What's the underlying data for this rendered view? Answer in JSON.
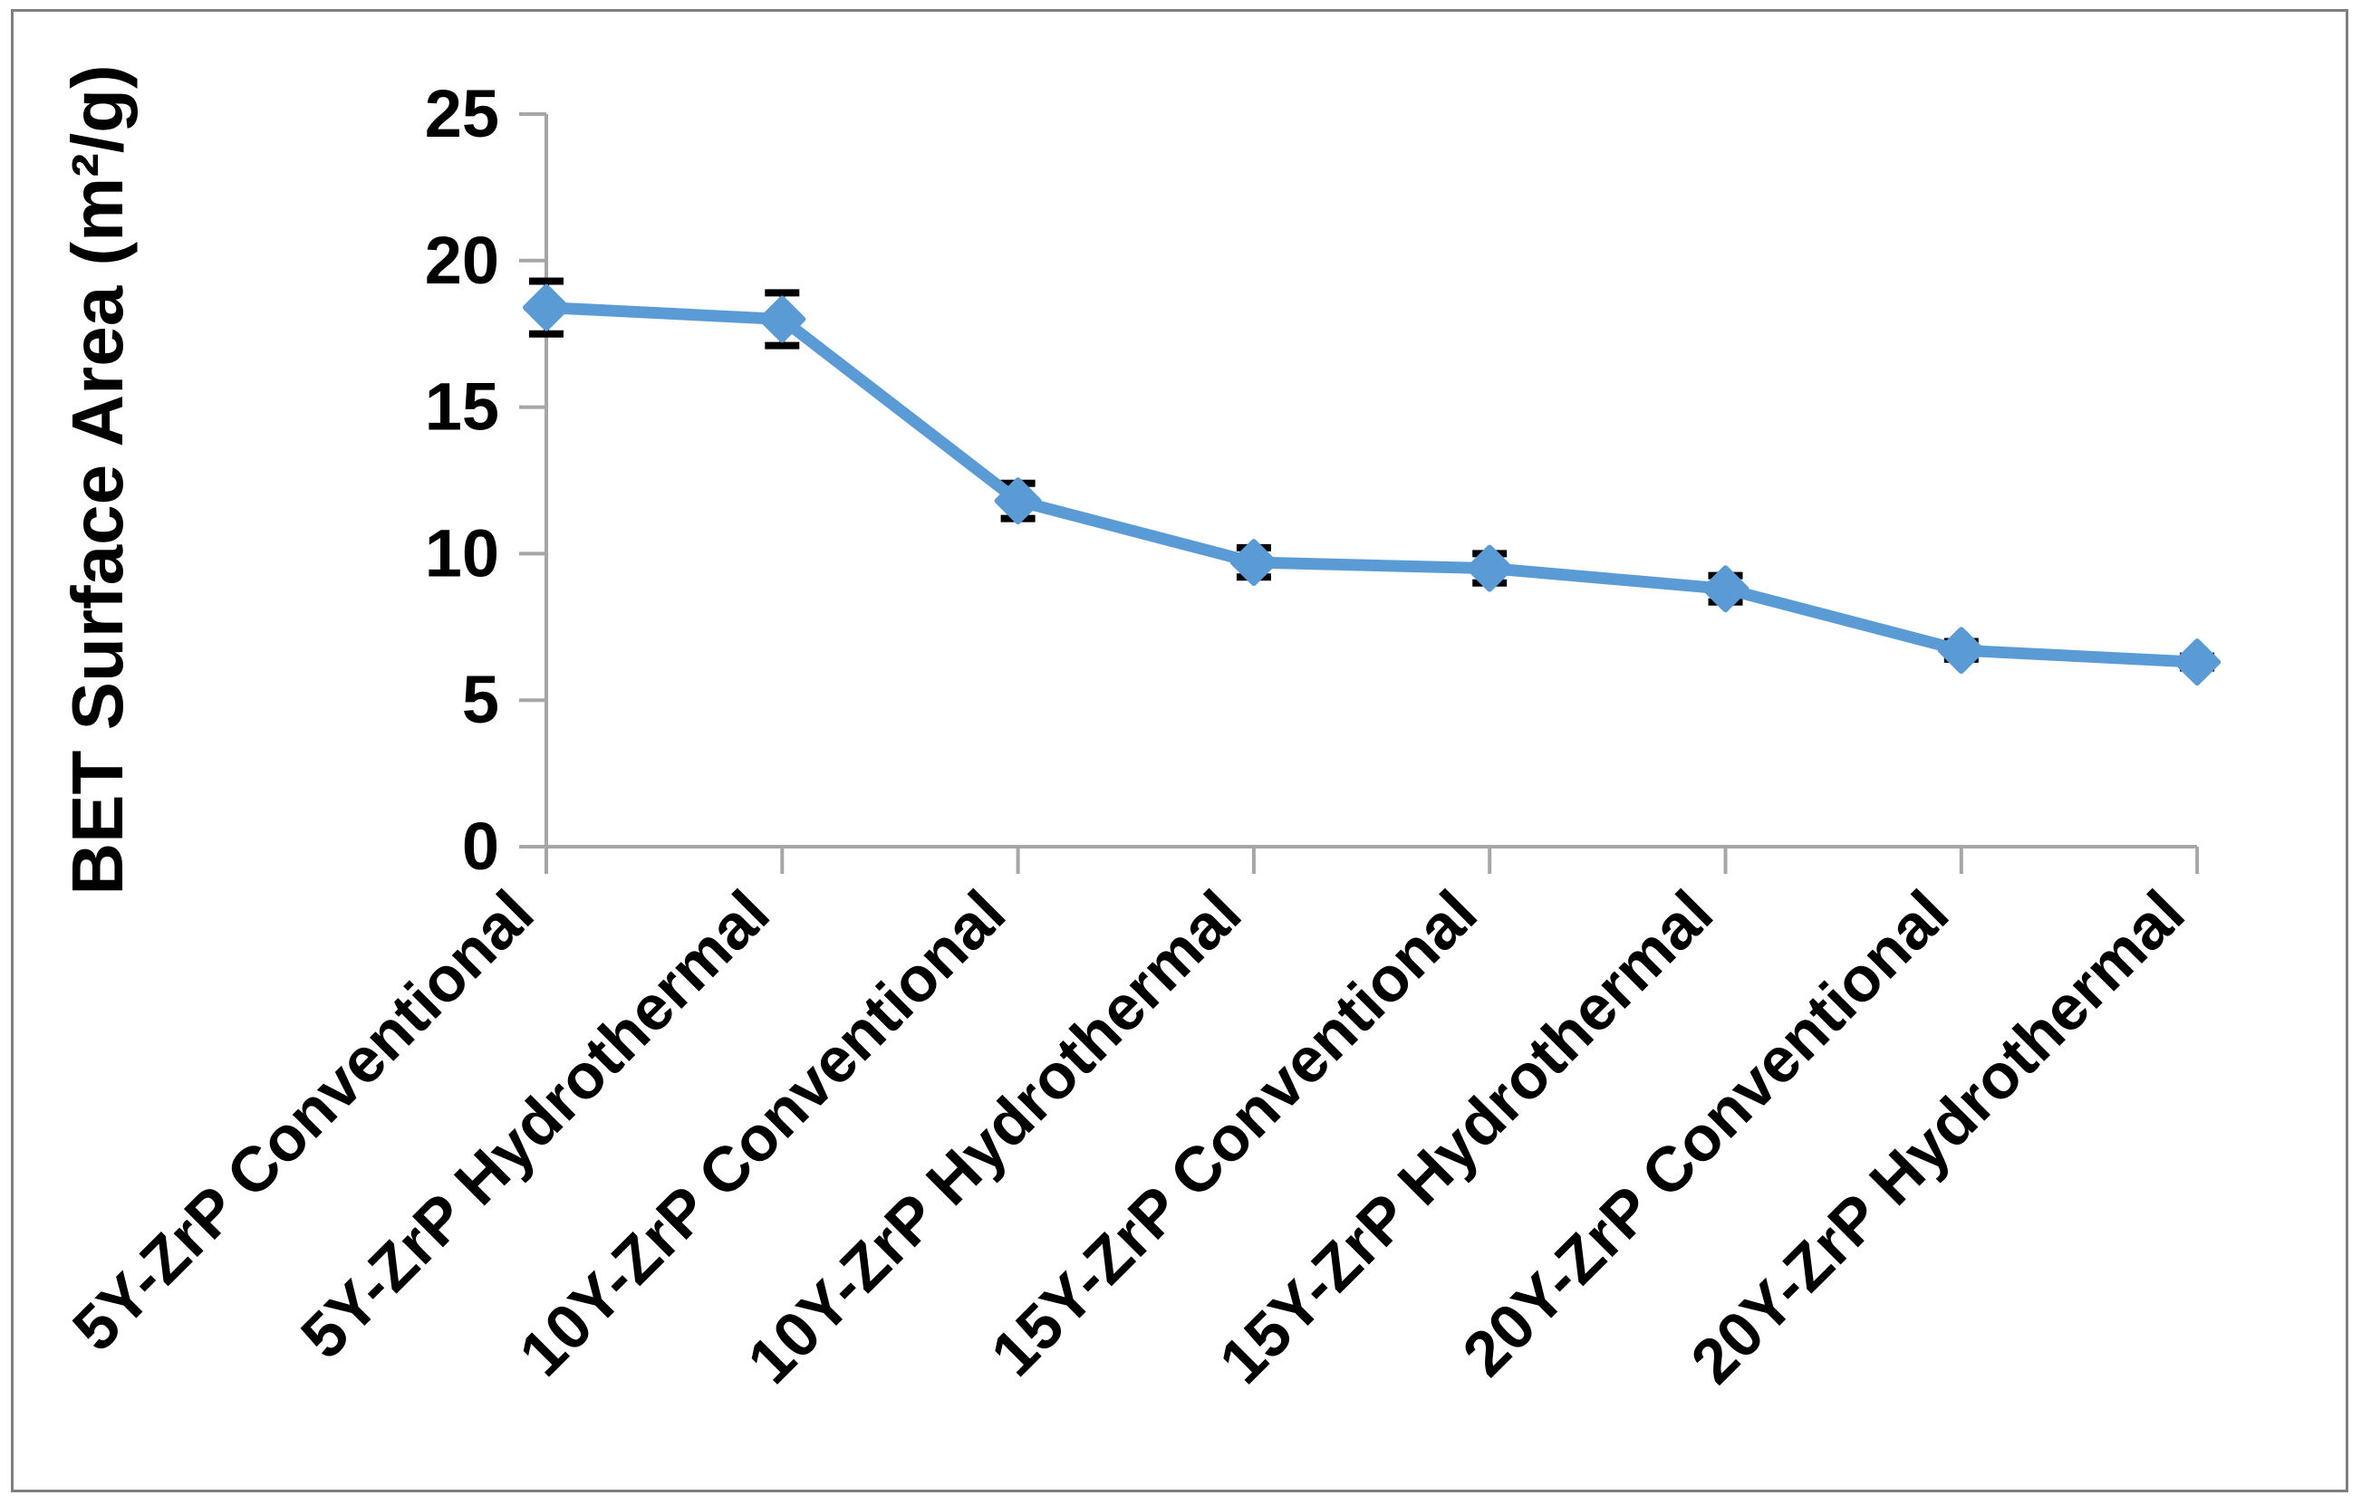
{
  "figure": {
    "background": "#ffffff",
    "border_color": "#7f7f7f"
  },
  "chart_data": {
    "type": "line",
    "title": "",
    "xlabel": "",
    "ylabel": "BET Surface Area (m²/g)",
    "ylim": [
      0,
      25
    ],
    "yticks": [
      "0",
      "5",
      "10",
      "15",
      "20",
      "25"
    ],
    "ytick_values": [
      0,
      5,
      10,
      15,
      20,
      25
    ],
    "grid": false,
    "legend_position": "none",
    "x_tick_label_rotation_deg": 45,
    "categories": [
      "5Y-ZrP Conventional",
      "5Y-ZrP Hydrothermal",
      "10Y-ZrP Conventional",
      "10Y-ZrP Hydrothermal",
      "15Y-ZrP Conventional",
      "15Y-ZrP Hydrothermal",
      "20Y-ZrP Conventional",
      "20Y-ZrP Hydrothermal"
    ],
    "series": [
      {
        "name": "BET surface area",
        "values": [
          18.4,
          18.0,
          11.8,
          9.7,
          9.5,
          8.8,
          6.7,
          6.3
        ],
        "error_bars": [
          0.9,
          0.9,
          0.6,
          0.5,
          0.5,
          0.45,
          0.3,
          0.2
        ],
        "marker": "diamond",
        "line_color": "#5b9bd5",
        "marker_color": "#5b9bd5",
        "error_bar_color": "#000000"
      }
    ],
    "axis_color": "#a6a6a6",
    "text_color": "#000000"
  }
}
